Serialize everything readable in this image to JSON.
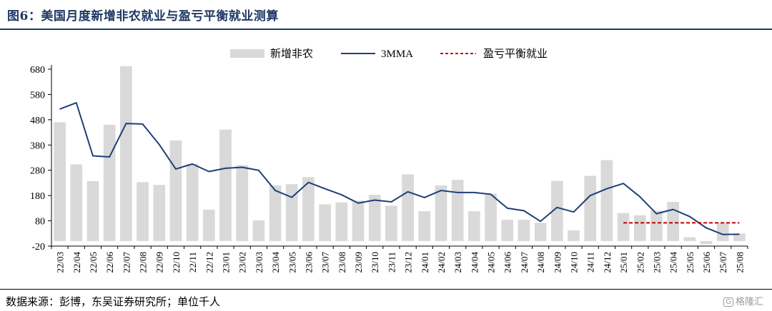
{
  "title": "图6：美国月度新增非农就业与盈亏平衡就业测算",
  "source": "数据来源：彭博，东吴证券研究所；单位千人",
  "watermark": "格隆汇",
  "colors": {
    "bar": "#d9d9d9",
    "line": "#1f3f7a",
    "breakeven": "#c00000",
    "title": "#1f3864"
  },
  "chart_data": {
    "type": "bar+line",
    "categories": [
      "22/03",
      "22/04",
      "22/05",
      "22/06",
      "22/07",
      "22/08",
      "22/09",
      "22/10",
      "22/11",
      "22/12",
      "23/01",
      "23/02",
      "23/03",
      "23/04",
      "23/05",
      "23/06",
      "23/07",
      "23/08",
      "23/09",
      "23/10",
      "23/11",
      "23/12",
      "24/01",
      "24/02",
      "24/03",
      "24/04",
      "24/05",
      "24/06",
      "24/07",
      "24/08",
      "24/09",
      "24/10",
      "24/11",
      "24/12",
      "25/01",
      "25/02",
      "25/03",
      "25/04",
      "25/05",
      "25/06",
      "25/07",
      "25/08"
    ],
    "series": [
      {
        "name": "新增非农",
        "type": "bar",
        "values": [
          470,
          303,
          237,
          460,
          692,
          233,
          222,
          398,
          305,
          124,
          441,
          300,
          82,
          220,
          225,
          253,
          145,
          153,
          160,
          183,
          140,
          264,
          118,
          220,
          242,
          118,
          188,
          84,
          84,
          72,
          238,
          42,
          258,
          320,
          111,
          102,
          120,
          155,
          15,
          -13,
          72,
          30
        ]
      },
      {
        "name": "3MMA",
        "type": "line",
        "values": [
          522,
          547,
          337,
          333,
          465,
          463,
          382,
          285,
          305,
          275,
          288,
          292,
          280,
          200,
          173,
          232,
          207,
          183,
          150,
          162,
          155,
          195,
          172,
          200,
          192,
          192,
          185,
          130,
          120,
          78,
          133,
          115,
          180,
          207,
          228,
          175,
          108,
          125,
          97,
          52,
          26,
          27
        ]
      },
      {
        "name": "盈亏平衡就业",
        "type": "dashed-line",
        "value": 72,
        "from": "25/01",
        "to": "25/08"
      }
    ],
    "ylim": [
      -20,
      680
    ],
    "yticks": [
      -20,
      80,
      180,
      280,
      380,
      480,
      580,
      680
    ],
    "legend_position": "top-center",
    "grid": false
  }
}
